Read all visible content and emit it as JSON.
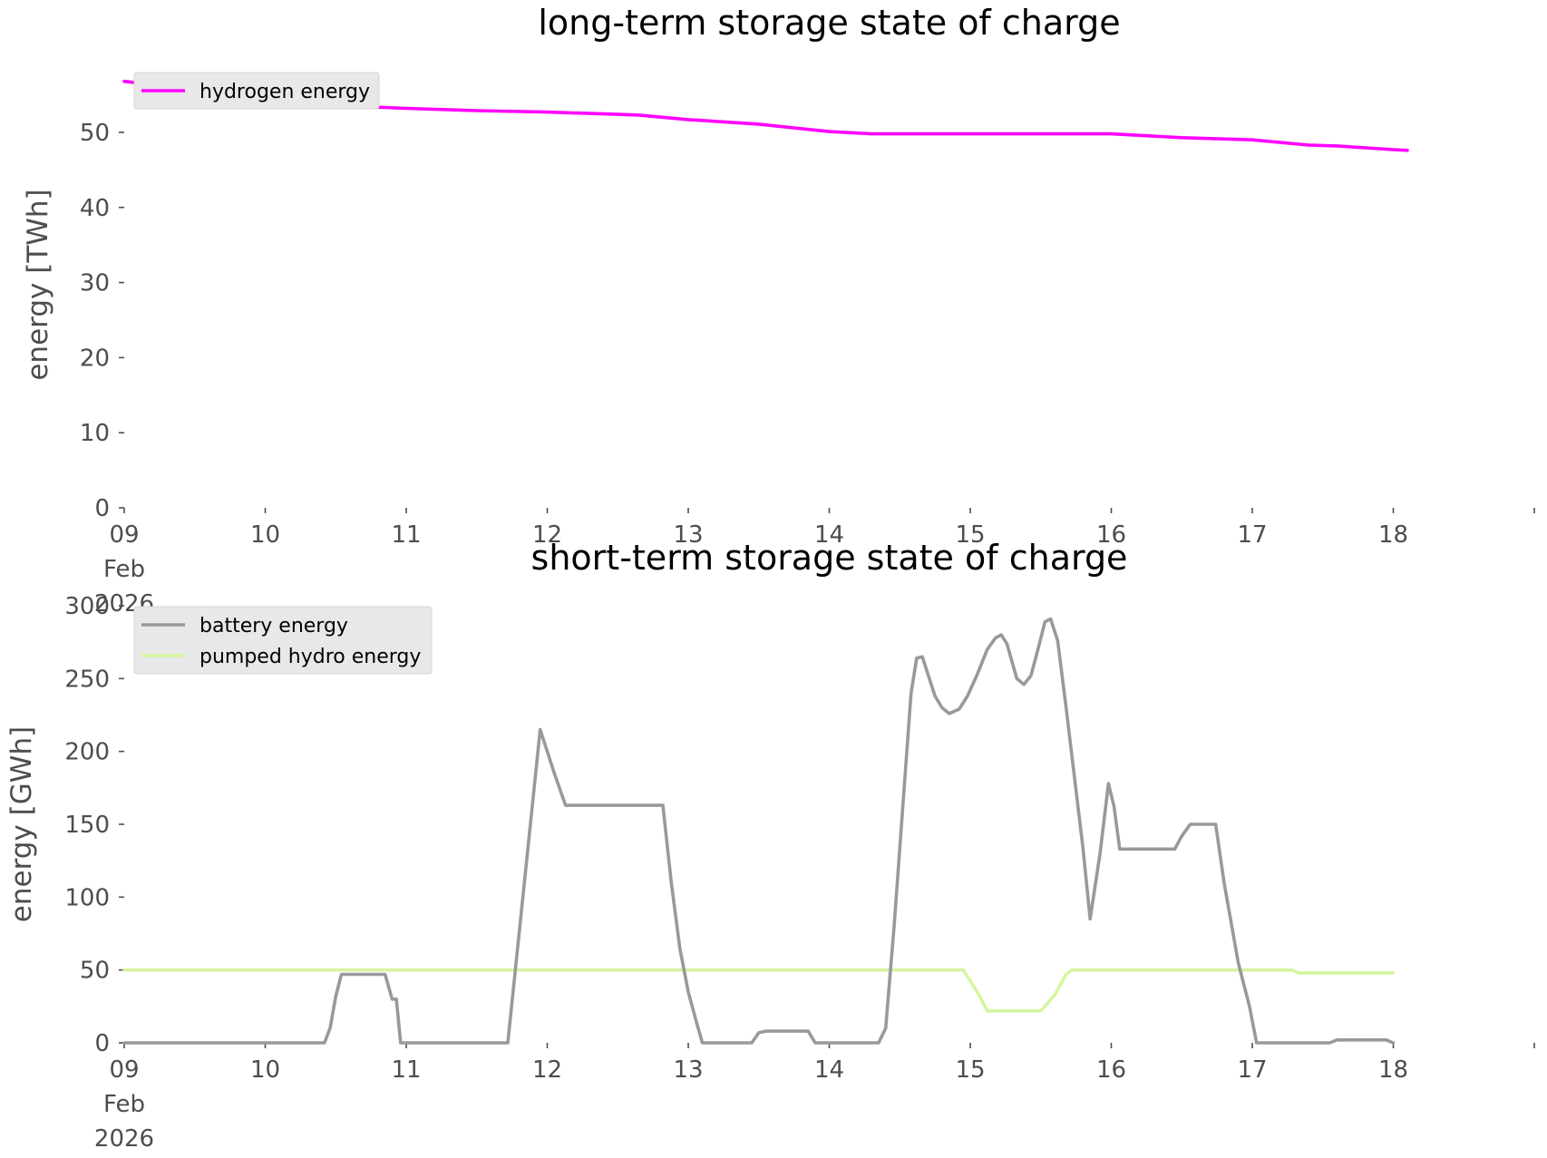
{
  "chart_data": [
    {
      "type": "line",
      "title": "long-term storage state of charge",
      "xlabel": "",
      "ylabel": "energy [TWh]",
      "x_ticks": [
        "09\nFeb\n2026",
        "10",
        "11",
        "12",
        "13",
        "14",
        "15",
        "16",
        "17",
        "18",
        ""
      ],
      "x_range": [
        "2026-02-09",
        "2026-02-19"
      ],
      "y_ticks": [
        "0",
        "10",
        "20",
        "30",
        "40",
        "50"
      ],
      "ylim": [
        0,
        57
      ],
      "grid": false,
      "legend": "top-left",
      "x_unit": "days since 2026-02-09 00:00",
      "series": [
        {
          "name": "hydrogen energy",
          "color": "#ff00ff",
          "points": [
            [
              0,
              56.8
            ],
            [
              0.5,
              55.7
            ],
            [
              1.0,
              54.2
            ],
            [
              1.5,
              53.6
            ],
            [
              2.0,
              53.2
            ],
            [
              2.5,
              52.9
            ],
            [
              3.0,
              52.7
            ],
            [
              3.5,
              52.4
            ],
            [
              3.65,
              52.3
            ],
            [
              4.0,
              51.7
            ],
            [
              4.5,
              51.1
            ],
            [
              5.0,
              50.1
            ],
            [
              5.3,
              49.8
            ],
            [
              6.0,
              49.8
            ],
            [
              7.0,
              49.8
            ],
            [
              7.5,
              49.3
            ],
            [
              8.0,
              49.0
            ],
            [
              8.4,
              48.3
            ],
            [
              8.6,
              48.2
            ],
            [
              9.0,
              47.7
            ],
            [
              9.1,
              47.6
            ]
          ]
        }
      ]
    },
    {
      "type": "line",
      "title": "short-term storage state of charge",
      "xlabel": "",
      "ylabel": "energy [GWh]",
      "x_ticks": [
        "09\nFeb\n2026",
        "10",
        "11",
        "12",
        "13",
        "14",
        "15",
        "16",
        "17",
        "18",
        ""
      ],
      "x_range": [
        "2026-02-09",
        "2026-02-19"
      ],
      "y_ticks": [
        "0",
        "50",
        "100",
        "150",
        "200",
        "250",
        "300"
      ],
      "ylim": [
        0,
        300
      ],
      "grid": false,
      "legend": "top-left",
      "x_unit": "days since 2026-02-09 00:00",
      "series": [
        {
          "name": "battery energy",
          "color": "#999999",
          "points": [
            [
              0,
              0
            ],
            [
              1.42,
              0
            ],
            [
              1.46,
              10
            ],
            [
              1.5,
              32
            ],
            [
              1.54,
              47
            ],
            [
              1.85,
              47
            ],
            [
              1.9,
              30
            ],
            [
              1.93,
              30
            ],
            [
              1.96,
              0
            ],
            [
              2.72,
              0
            ],
            [
              2.95,
              215
            ],
            [
              3.05,
              185
            ],
            [
              3.13,
              163
            ],
            [
              3.82,
              163
            ],
            [
              3.88,
              110
            ],
            [
              3.94,
              65
            ],
            [
              4.0,
              35
            ],
            [
              4.05,
              17
            ],
            [
              4.1,
              0
            ],
            [
              4.45,
              0
            ],
            [
              4.5,
              7
            ],
            [
              4.55,
              8
            ],
            [
              4.85,
              8
            ],
            [
              4.9,
              0
            ],
            [
              5.35,
              0
            ],
            [
              5.4,
              10
            ],
            [
              5.46,
              80
            ],
            [
              5.58,
              240
            ],
            [
              5.62,
              264
            ],
            [
              5.66,
              265
            ],
            [
              5.75,
              238
            ],
            [
              5.8,
              230
            ],
            [
              5.85,
              226
            ],
            [
              5.92,
              229
            ],
            [
              5.98,
              238
            ],
            [
              6.05,
              253
            ],
            [
              6.12,
              270
            ],
            [
              6.18,
              278
            ],
            [
              6.22,
              280
            ],
            [
              6.26,
              274
            ],
            [
              6.33,
              250
            ],
            [
              6.38,
              246
            ],
            [
              6.43,
              252
            ],
            [
              6.48,
              270
            ],
            [
              6.53,
              289
            ],
            [
              6.57,
              291
            ],
            [
              6.62,
              276
            ],
            [
              6.68,
              230
            ],
            [
              6.8,
              133
            ],
            [
              6.85,
              85
            ],
            [
              6.92,
              130
            ],
            [
              6.98,
              178
            ],
            [
              7.02,
              162
            ],
            [
              7.06,
              133
            ],
            [
              7.45,
              133
            ],
            [
              7.5,
              142
            ],
            [
              7.56,
              150
            ],
            [
              7.74,
              150
            ],
            [
              7.8,
              110
            ],
            [
              7.9,
              55
            ],
            [
              7.98,
              25
            ],
            [
              8.03,
              0
            ],
            [
              8.55,
              0
            ],
            [
              8.6,
              2
            ],
            [
              8.95,
              2
            ],
            [
              9.0,
              0
            ]
          ]
        },
        {
          "name": "pumped hydro energy",
          "color": "#d6f5a0",
          "points": [
            [
              0,
              50
            ],
            [
              5.95,
              50
            ],
            [
              6.05,
              35
            ],
            [
              6.12,
              22
            ],
            [
              6.5,
              22
            ],
            [
              6.6,
              33
            ],
            [
              6.68,
              47
            ],
            [
              6.72,
              50
            ],
            [
              8.28,
              50
            ],
            [
              8.33,
              48
            ],
            [
              9.0,
              48
            ]
          ]
        }
      ]
    }
  ]
}
